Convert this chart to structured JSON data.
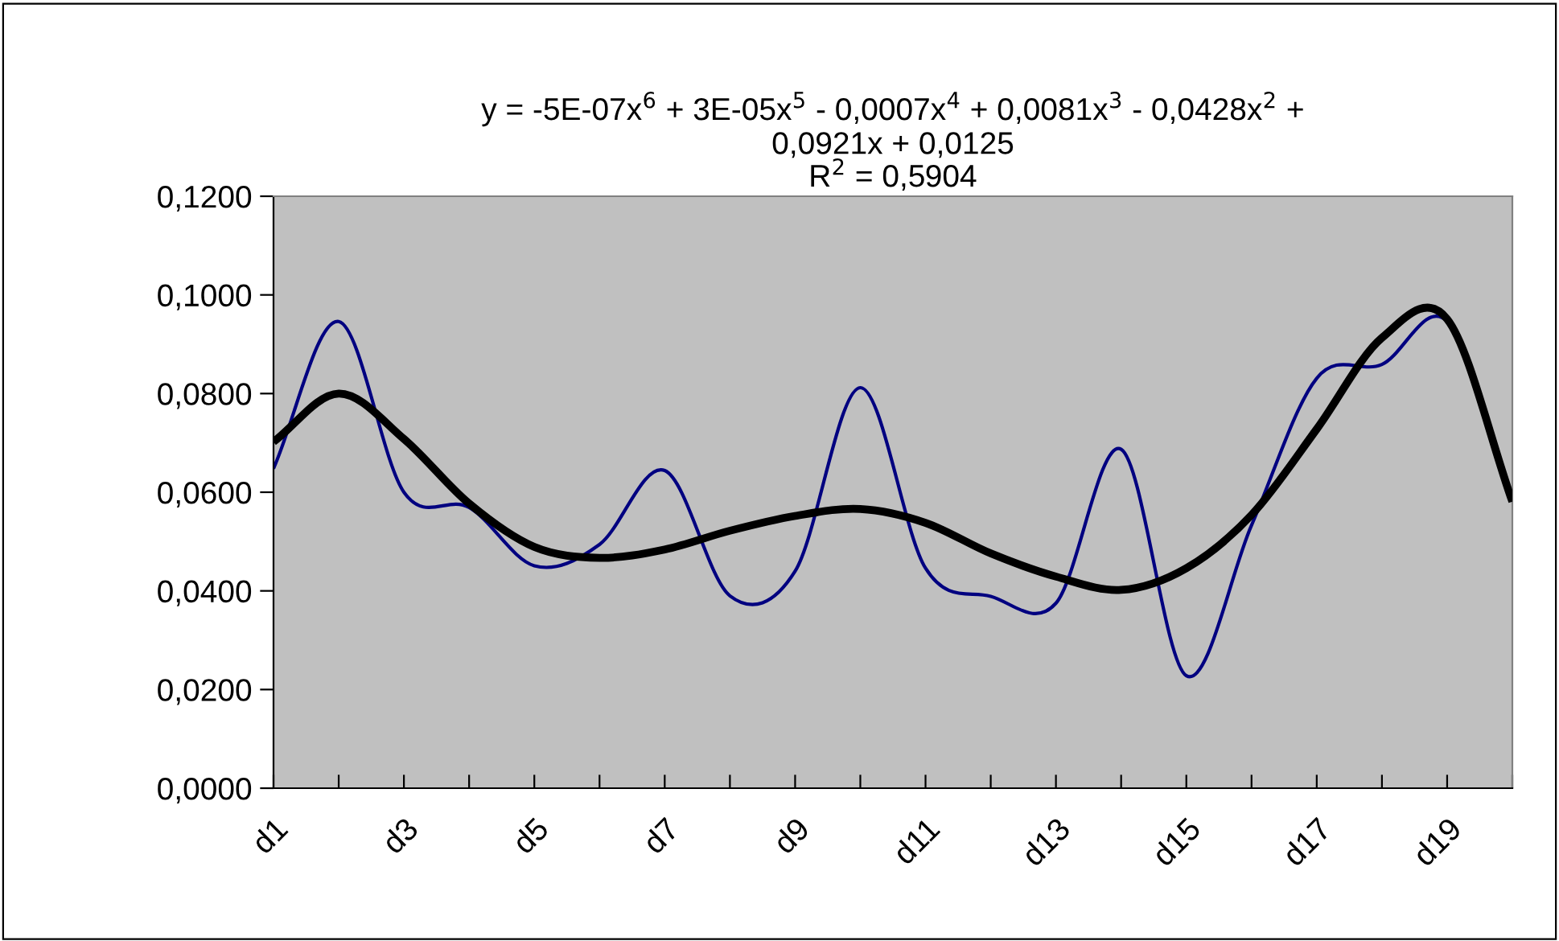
{
  "chart_data": {
    "type": "line",
    "categories": [
      "d1",
      null,
      "d3",
      null,
      "d5",
      null,
      "d7",
      null,
      "d9",
      null,
      "d11",
      null,
      "d13",
      null,
      "d15",
      null,
      "d17",
      null,
      "d19",
      null
    ],
    "series": [
      {
        "color": "#000080",
        "values": [
          0.0648,
          0.0946,
          0.06,
          0.0569,
          0.0451,
          0.0494,
          0.0644,
          0.039,
          0.044,
          0.0812,
          0.0446,
          0.0389,
          0.0375,
          0.0687,
          0.0228,
          0.0533,
          0.0831,
          0.0859,
          0.0946,
          0.0581
        ]
      },
      {
        "color": "#000000",
        "values": [
          0.0702,
          0.08,
          0.0708,
          0.0577,
          0.0489,
          0.0467,
          0.0484,
          0.0522,
          0.0552,
          0.0566,
          0.0538,
          0.0476,
          0.0429,
          0.0402,
          0.0446,
          0.0554,
          0.0728,
          0.0913,
          0.0951,
          0.0581
        ]
      }
    ],
    "ylim": [
      0,
      0.12
    ],
    "yticks": [
      {
        "value": 0,
        "label": "0,0000"
      },
      {
        "value": 0.02,
        "label": "0,0200"
      },
      {
        "value": 0.04,
        "label": "0,0400"
      },
      {
        "value": 0.06,
        "label": "0,0600"
      },
      {
        "value": 0.08,
        "label": "0,0800"
      },
      {
        "value": 0.1,
        "label": "0,1000"
      },
      {
        "value": 0.12,
        "label": "0,1200"
      }
    ],
    "grid": false,
    "marker": "none",
    "line_style": "solid",
    "annotations": [
      "y = -5E-07x$^{6}$ + 3E-05x$^{5}$ - 0,0007x$^{4}$ + 0,0081x$^{3}$ - 0,0428x$^{2}$ +\n0,0921x + 0,0125",
      "R$^{2}$ = 0,5904"
    ]
  }
}
